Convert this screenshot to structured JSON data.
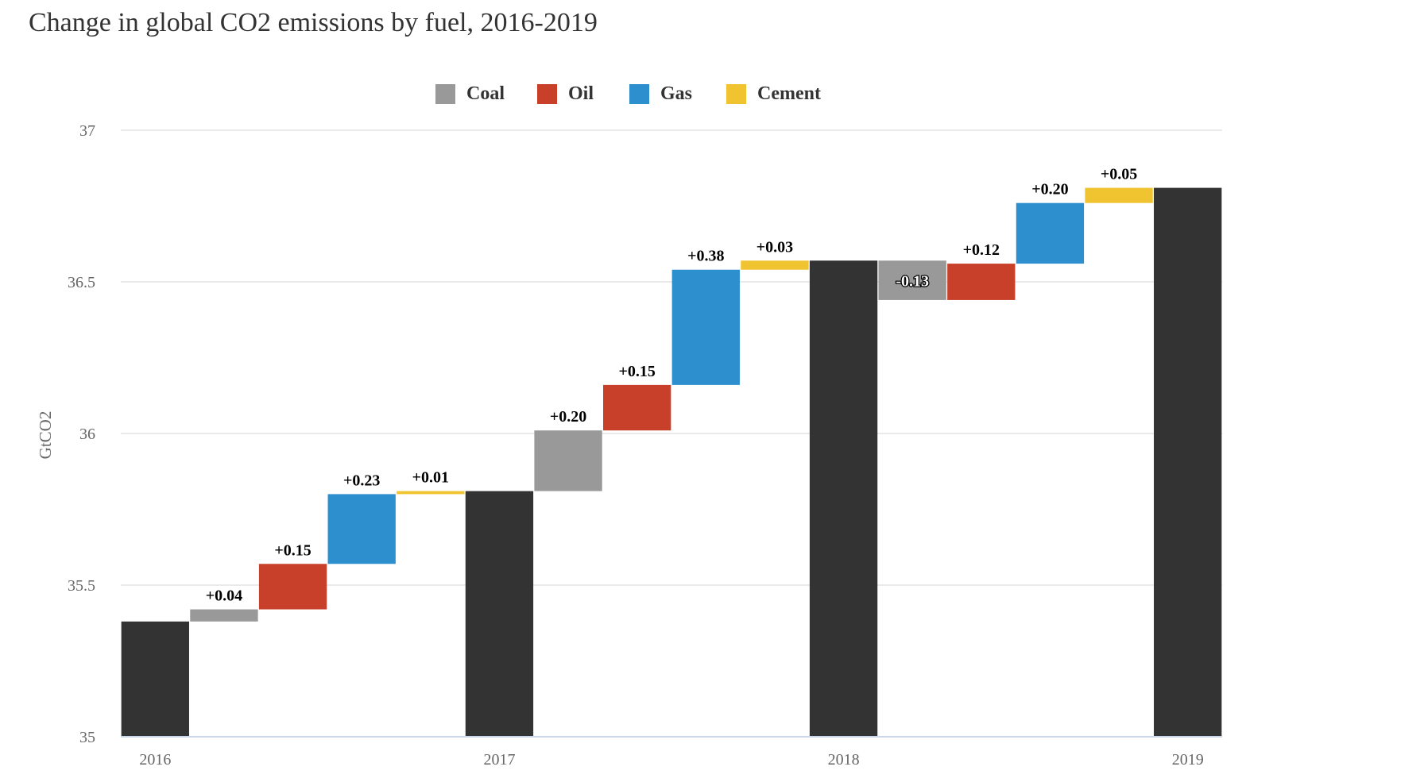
{
  "chart_data": {
    "type": "bar",
    "subtype": "waterfall",
    "title": "Change in global CO2 emissions by fuel, 2016-2019",
    "ylabel": "GtCO2",
    "xlabel": "",
    "ylim": [
      35,
      37
    ],
    "y_ticks": [
      "35",
      "35.5",
      "36",
      "36.5",
      "37"
    ],
    "x_tick_labels": [
      "2016",
      "2017",
      "2018",
      "2019"
    ],
    "grid": true,
    "legend_position": "top-center",
    "legend": [
      {
        "name": "Coal",
        "color": "#999999"
      },
      {
        "name": "Oil",
        "color": "#c9402a"
      },
      {
        "name": "Gas",
        "color": "#2e8fcf"
      },
      {
        "name": "Cement",
        "color": "#f0c330"
      }
    ],
    "total_color": "#333333",
    "bars": [
      {
        "kind": "total",
        "year": "2016",
        "value": 35.38
      },
      {
        "kind": "delta",
        "fuel": "Coal",
        "start": 35.38,
        "end": 35.42,
        "label": "+0.04"
      },
      {
        "kind": "delta",
        "fuel": "Oil",
        "start": 35.42,
        "end": 35.57,
        "label": "+0.15"
      },
      {
        "kind": "delta",
        "fuel": "Gas",
        "start": 35.57,
        "end": 35.8,
        "label": "+0.23"
      },
      {
        "kind": "delta",
        "fuel": "Cement",
        "start": 35.8,
        "end": 35.81,
        "label": "+0.01"
      },
      {
        "kind": "total",
        "year": "2017",
        "value": 35.81
      },
      {
        "kind": "delta",
        "fuel": "Coal",
        "start": 35.81,
        "end": 36.01,
        "label": "+0.20"
      },
      {
        "kind": "delta",
        "fuel": "Oil",
        "start": 36.01,
        "end": 36.16,
        "label": "+0.15"
      },
      {
        "kind": "delta",
        "fuel": "Gas",
        "start": 36.16,
        "end": 36.54,
        "label": "+0.38"
      },
      {
        "kind": "delta",
        "fuel": "Cement",
        "start": 36.54,
        "end": 36.57,
        "label": "+0.03"
      },
      {
        "kind": "total",
        "year": "2018",
        "value": 36.57
      },
      {
        "kind": "delta",
        "fuel": "Coal",
        "start": 36.57,
        "end": 36.44,
        "label": "-0.13"
      },
      {
        "kind": "delta",
        "fuel": "Oil",
        "start": 36.44,
        "end": 36.56,
        "label": "+0.12"
      },
      {
        "kind": "delta",
        "fuel": "Gas",
        "start": 36.56,
        "end": 36.76,
        "label": "+0.20"
      },
      {
        "kind": "delta",
        "fuel": "Cement",
        "start": 36.76,
        "end": 36.81,
        "label": "+0.05"
      },
      {
        "kind": "total",
        "year": "2019",
        "value": 36.81
      }
    ]
  }
}
